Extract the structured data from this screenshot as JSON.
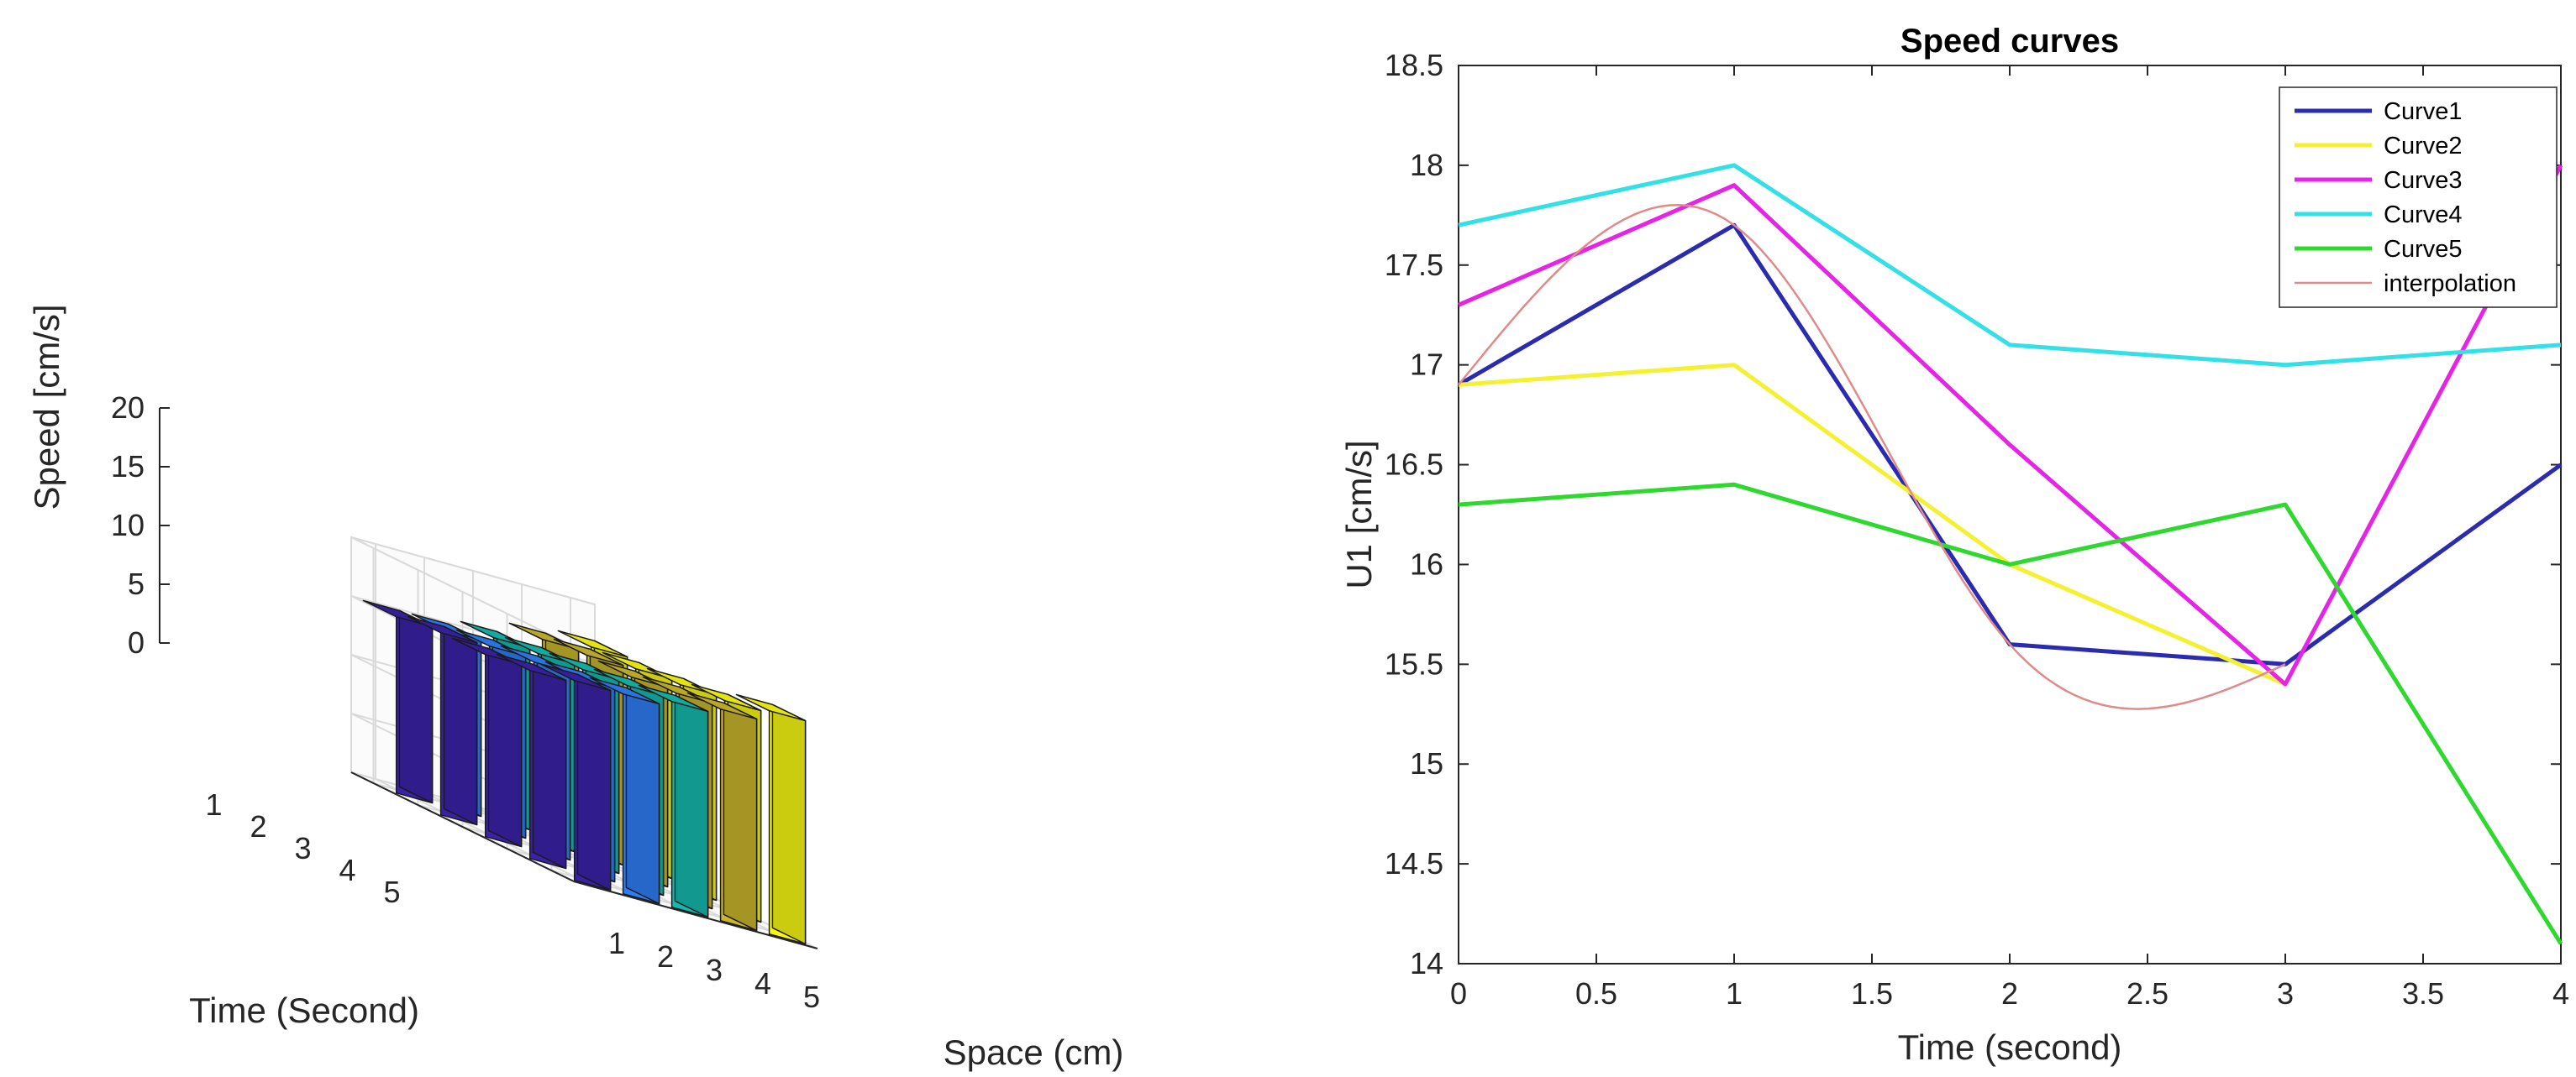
{
  "charts": [
    {
      "type": "bar3d",
      "title": "",
      "xlabel": "Space (cm)",
      "ylabel": "Time (Second)",
      "zlabel": "Speed [cm/s]",
      "space_ticks": [
        "1",
        "2",
        "3",
        "4",
        "5"
      ],
      "time_ticks": [
        "1",
        "2",
        "3",
        "4",
        "5"
      ],
      "zlim": [
        0,
        20
      ],
      "z_ticks": [
        "0",
        "5",
        "10",
        "15",
        "20"
      ],
      "series_colors": [
        "#3a22a8",
        "#2f7df5",
        "#15b9ae",
        "#c9b62c",
        "#f8f812"
      ],
      "values": [
        [
          15.0,
          15.0,
          15.5,
          16.5,
          17.0
        ],
        [
          15.5,
          15.5,
          16.0,
          17.0,
          17.0
        ],
        [
          15.5,
          16.0,
          16.5,
          17.0,
          17.5
        ],
        [
          16.0,
          16.5,
          17.0,
          17.5,
          18.0
        ],
        [
          17.0,
          17.0,
          17.5,
          18.0,
          19.0
        ]
      ]
    },
    {
      "type": "line",
      "title": "Speed curves",
      "xlabel": "Time (second)",
      "ylabel": "U1 [cm/s]",
      "xlim": [
        0,
        4
      ],
      "ylim": [
        14,
        18.5
      ],
      "x_ticks": [
        "0",
        "0.5",
        "1",
        "1.5",
        "2",
        "2.5",
        "3",
        "3.5",
        "4"
      ],
      "y_ticks": [
        "14",
        "14.5",
        "15",
        "15.5",
        "16",
        "16.5",
        "17",
        "17.5",
        "18",
        "18.5"
      ],
      "legend_position": "top-right",
      "series": [
        {
          "name": "Curve1",
          "color": "#2b2bb0",
          "x": [
            0,
            1,
            2,
            3,
            4
          ],
          "y": [
            16.9,
            17.7,
            15.6,
            15.5,
            16.5
          ]
        },
        {
          "name": "Curve2",
          "color": "#f4f032",
          "x": [
            0,
            1,
            2,
            3
          ],
          "y": [
            16.9,
            17.0,
            16.0,
            15.4
          ]
        },
        {
          "name": "Curve3",
          "color": "#e624e6",
          "x": [
            0,
            1,
            2,
            3,
            4
          ],
          "y": [
            17.3,
            17.9,
            16.6,
            15.4,
            18.0
          ]
        },
        {
          "name": "Curve4",
          "color": "#33e0e6",
          "x": [
            0,
            1,
            2,
            3,
            4
          ],
          "y": [
            17.7,
            18.0,
            17.1,
            17.0,
            17.1
          ]
        },
        {
          "name": "Curve5",
          "color": "#2ed82e",
          "x": [
            0,
            1,
            2,
            3,
            4
          ],
          "y": [
            16.3,
            16.4,
            16.0,
            16.3,
            14.1
          ]
        },
        {
          "name": "interpolation",
          "color": "#e08a8a",
          "interpolate": "spline",
          "x": [
            0,
            1,
            2,
            3
          ],
          "y": [
            16.9,
            17.7,
            15.6,
            15.5
          ]
        }
      ]
    }
  ]
}
